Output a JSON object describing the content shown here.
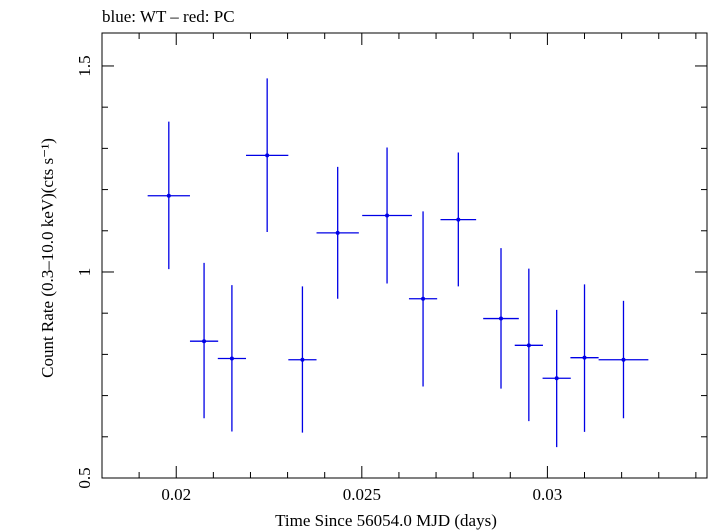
{
  "chart_data": {
    "type": "scatter",
    "title": "blue: WT – red: PC",
    "xlabel": "Time Since 56054.0 MJD (days)",
    "ylabel": "Count Rate (0.3–10.0 keV)(cts s⁻¹)",
    "xlim": [
      0.018,
      0.0343
    ],
    "ylim": [
      0.5,
      1.58
    ],
    "x_ticks": [
      {
        "value": 0.02,
        "label": "0.02"
      },
      {
        "value": 0.025,
        "label": "0.025"
      },
      {
        "value": 0.03,
        "label": "0.03"
      }
    ],
    "y_ticks": [
      {
        "value": 0.5,
        "label": "0.5"
      },
      {
        "value": 1,
        "label": "1"
      },
      {
        "value": 1.5,
        "label": "1.5"
      }
    ],
    "series": [
      {
        "name": "WT",
        "color": "#0000e6",
        "points": [
          {
            "x": 0.0198,
            "xerr": 0.00057,
            "y": 1.185,
            "ylo": 1.007,
            "yhi": 1.365
          },
          {
            "x": 0.02075,
            "xerr": 0.00038,
            "y": 0.832,
            "ylo": 0.645,
            "yhi": 1.022
          },
          {
            "x": 0.0215,
            "xerr": 0.00038,
            "y": 0.79,
            "ylo": 0.613,
            "yhi": 0.968
          },
          {
            "x": 0.02245,
            "xerr": 0.00057,
            "y": 1.283,
            "ylo": 1.097,
            "yhi": 1.47
          },
          {
            "x": 0.0234,
            "xerr": 0.00038,
            "y": 0.787,
            "ylo": 0.61,
            "yhi": 0.965
          },
          {
            "x": 0.02435,
            "xerr": 0.00057,
            "y": 1.095,
            "ylo": 0.935,
            "yhi": 1.255
          },
          {
            "x": 0.02568,
            "xerr": 0.00067,
            "y": 1.137,
            "ylo": 0.972,
            "yhi": 1.302
          },
          {
            "x": 0.02665,
            "xerr": 0.00038,
            "y": 0.935,
            "ylo": 0.722,
            "yhi": 1.147
          },
          {
            "x": 0.0276,
            "xerr": 0.00048,
            "y": 1.127,
            "ylo": 0.965,
            "yhi": 1.29
          },
          {
            "x": 0.02875,
            "xerr": 0.00048,
            "y": 0.887,
            "ylo": 0.717,
            "yhi": 1.058
          },
          {
            "x": 0.0295,
            "xerr": 0.00038,
            "y": 0.822,
            "ylo": 0.638,
            "yhi": 1.008
          },
          {
            "x": 0.03025,
            "xerr": 0.00038,
            "y": 0.742,
            "ylo": 0.575,
            "yhi": 0.908
          },
          {
            "x": 0.031,
            "xerr": 0.00038,
            "y": 0.792,
            "ylo": 0.612,
            "yhi": 0.97
          },
          {
            "x": 0.03205,
            "xerr": 0.00067,
            "y": 0.787,
            "ylo": 0.645,
            "yhi": 0.93
          }
        ]
      }
    ]
  }
}
